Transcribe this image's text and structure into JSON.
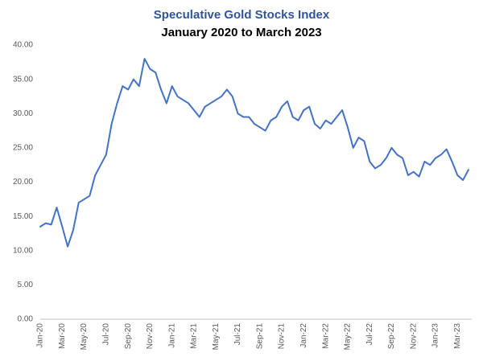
{
  "chart_data": {
    "type": "line",
    "title": "Speculative Gold Stocks Index",
    "subtitle": "January 2020 to March 2023",
    "color": "#4472c4",
    "grid": false,
    "categories": [
      "Jan-20",
      null,
      null,
      null,
      "Mar-20",
      null,
      null,
      null,
      "May-20",
      null,
      null,
      null,
      "Jul-20",
      null,
      null,
      null,
      "Sep-20",
      null,
      null,
      null,
      "Nov-20",
      null,
      null,
      null,
      "Jan-21",
      null,
      null,
      null,
      "Mar-21",
      null,
      null,
      null,
      "May-21",
      null,
      null,
      null,
      "Jul-21",
      null,
      null,
      null,
      "Sep-21",
      null,
      null,
      null,
      "Nov-21",
      null,
      null,
      null,
      "Jan-22",
      null,
      null,
      null,
      "Mar-22",
      null,
      null,
      null,
      "May-22",
      null,
      null,
      null,
      "Jul-22",
      null,
      null,
      null,
      "Sep-22",
      null,
      null,
      null,
      "Nov-22",
      null,
      null,
      null,
      "Jan-23",
      null,
      null,
      null,
      "Mar-23",
      null,
      null
    ],
    "values": [
      13.5,
      14.0,
      13.8,
      16.3,
      13.5,
      10.6,
      13.0,
      17.0,
      17.5,
      18.0,
      21.0,
      22.5,
      24.0,
      28.5,
      31.5,
      34.0,
      33.5,
      35.0,
      34.0,
      38.0,
      36.5,
      36.0,
      33.5,
      31.5,
      34.0,
      32.5,
      32.0,
      31.5,
      30.5,
      29.5,
      31.0,
      31.5,
      32.0,
      32.5,
      33.5,
      32.5,
      30.0,
      29.5,
      29.5,
      28.5,
      28.0,
      27.5,
      29.0,
      29.5,
      31.0,
      31.8,
      29.5,
      29.0,
      30.5,
      31.0,
      28.5,
      27.8,
      29.0,
      28.5,
      29.5,
      30.5,
      28.0,
      25.0,
      26.5,
      26.0,
      23.0,
      22.0,
      22.5,
      23.5,
      25.0,
      24.0,
      23.5,
      21.0,
      21.5,
      20.8,
      23.0,
      22.5,
      23.5,
      24.0,
      24.8,
      23.0,
      21.0,
      20.3,
      21.8
    ],
    "ylim": [
      0,
      40
    ],
    "yticks": [
      {
        "value": 0,
        "label": "0.00"
      },
      {
        "value": 5,
        "label": "5.00"
      },
      {
        "value": 10,
        "label": "10.00"
      },
      {
        "value": 15,
        "label": "15.00"
      },
      {
        "value": 20,
        "label": "20.00"
      },
      {
        "value": 25,
        "label": "25.00"
      },
      {
        "value": 30,
        "label": "30.00"
      },
      {
        "value": 35,
        "label": "35.00"
      },
      {
        "value": 40,
        "label": "40.00"
      }
    ]
  }
}
